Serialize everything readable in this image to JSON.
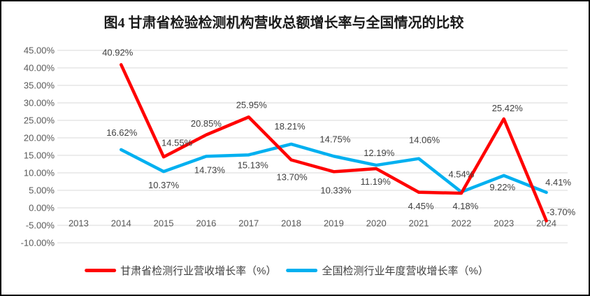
{
  "chart_data": {
    "type": "line",
    "title": "图4  甘肃省检验检测机构营收总额增长率与全国情况的比较",
    "categories": [
      "2013",
      "2014",
      "2015",
      "2016",
      "2017",
      "2018",
      "2019",
      "2020",
      "2021",
      "2022",
      "2023",
      "2024"
    ],
    "series": [
      {
        "name": "甘肃省检测行业营收增长率（%）",
        "color": "#FF0000",
        "values": [
          null,
          40.92,
          14.55,
          20.85,
          25.95,
          13.7,
          10.33,
          11.19,
          4.45,
          4.18,
          25.42,
          -3.7
        ],
        "data_labels": [
          "",
          "40.92%",
          "14.55%",
          "20.85%",
          "25.95%",
          "13.70%",
          "10.33%",
          "11.19%",
          "4.45%",
          "4.18%",
          "25.42%",
          "-3.70%"
        ],
        "label_offsets": [
          [
            0,
            0
          ],
          [
            -5,
            -13
          ],
          [
            19,
            -16
          ],
          [
            0,
            -12
          ],
          [
            4,
            -13
          ],
          [
            1,
            29
          ],
          [
            3,
            31
          ],
          [
            -1,
            23
          ],
          [
            3,
            24
          ],
          [
            6,
            23
          ],
          [
            5,
            -11
          ],
          [
            21,
            -8
          ]
        ]
      },
      {
        "name": "全国检测行业年度营收增长率（%）",
        "color": "#00B0F0",
        "values": [
          null,
          16.62,
          10.37,
          14.73,
          15.13,
          18.21,
          14.75,
          12.19,
          14.06,
          4.54,
          9.22,
          4.41
        ],
        "data_labels": [
          "",
          "16.62%",
          "10.37%",
          "14.73%",
          "15.13%",
          "18.21%",
          "14.75%",
          "12.19%",
          "14.06%",
          "4.54%",
          "9.22%",
          "4.41%"
        ],
        "label_offsets": [
          [
            0,
            0
          ],
          [
            1,
            -20
          ],
          [
            0,
            24
          ],
          [
            5,
            24
          ],
          [
            6,
            19
          ],
          [
            -2,
            -21
          ],
          [
            2,
            -20
          ],
          [
            4,
            -13
          ],
          [
            8,
            -22
          ],
          [
            0,
            -21
          ],
          [
            -2,
            21
          ],
          [
            17,
            -10
          ]
        ]
      }
    ],
    "y_axis": {
      "min": -10,
      "max": 45,
      "step": 5,
      "tick_labels": [
        "45.00%",
        "40.00%",
        "35.00%",
        "30.00%",
        "25.00%",
        "20.00%",
        "15.00%",
        "10.00%",
        "5.00%",
        "0.00%",
        "-5.00%",
        "-10.00%"
      ]
    },
    "grid": true,
    "legend_position": "bottom",
    "colors": {
      "gridline": "#D9D9D9",
      "axis_text": "#595959",
      "data_label_text": "#404040",
      "title_text": "#1A1A1A",
      "background": "#FFFFFF",
      "border": "#000000"
    }
  }
}
